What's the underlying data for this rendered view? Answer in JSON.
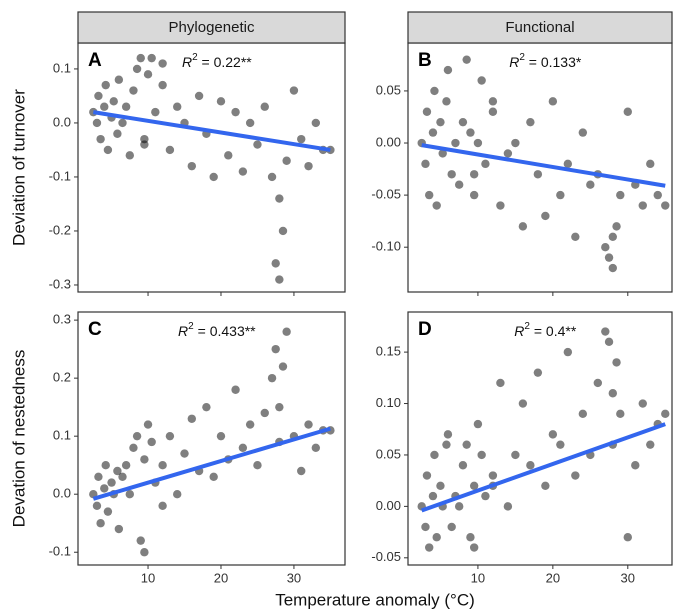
{
  "chart_data": [
    {
      "type": "scatter",
      "strip": "Phylogenetic",
      "letter": "A",
      "ylabel": "Deviation of turnover",
      "r2": {
        "symbol": "R",
        "power": "2",
        "text": " = 0.22**"
      },
      "xlim": [
        0.4,
        37
      ],
      "xticks": [
        10,
        20,
        30
      ],
      "ylim": [
        -0.313,
        0.148
      ],
      "yticks": [
        0.1,
        {
          "value": 0,
          "label": "0.0"
        },
        -0.1,
        -0.2,
        -0.3
      ],
      "point_color": "#000000",
      "fit_color": "#3366ee",
      "x": [
        2.5,
        3,
        3.2,
        3.5,
        4,
        4.2,
        4.5,
        5,
        5.3,
        5.8,
        6,
        6.5,
        7,
        7.5,
        8,
        8.5,
        9,
        9.5,
        10,
        11,
        12,
        13,
        14,
        15,
        16,
        17,
        18,
        19,
        20,
        21,
        22,
        23,
        24,
        25,
        26,
        27,
        28,
        28.5,
        29,
        30,
        31,
        32,
        33,
        34,
        35,
        9.5,
        10.5,
        12,
        27.5,
        28
      ],
      "y": [
        0.02,
        0.0,
        0.05,
        -0.03,
        0.03,
        0.07,
        -0.05,
        0.01,
        0.04,
        -0.02,
        0.08,
        0.0,
        0.03,
        -0.06,
        0.06,
        0.1,
        0.12,
        -0.04,
        0.09,
        0.02,
        0.11,
        -0.05,
        0.03,
        0.0,
        -0.08,
        0.05,
        -0.02,
        -0.1,
        0.04,
        -0.06,
        0.02,
        -0.09,
        0.0,
        -0.04,
        0.03,
        -0.1,
        -0.14,
        -0.2,
        -0.07,
        0.06,
        -0.03,
        -0.08,
        0.0,
        -0.05,
        -0.05,
        -0.03,
        0.12,
        0.07,
        -0.26,
        -0.29
      ],
      "fit": {
        "x": [
          2.5,
          35
        ],
        "y": [
          0.02,
          -0.05
        ]
      }
    },
    {
      "type": "scatter",
      "strip": "Functional",
      "letter": "B",
      "r2": {
        "symbol": "R",
        "power": "2",
        "text": " = 0.133*"
      },
      "xlim": [
        0.67,
        35.9
      ],
      "xticks": [
        10,
        20,
        30
      ],
      "ylim": [
        -0.143,
        0.096
      ],
      "yticks": [
        0.05,
        {
          "value": 0,
          "label": "0.00"
        },
        -0.05,
        {
          "value": -0.1,
          "label": "-0.10"
        }
      ],
      "point_color": "#000000",
      "fit_color": "#3366ee",
      "x": [
        2.5,
        3,
        3.2,
        3.5,
        4,
        4.2,
        4.5,
        5,
        5.3,
        5.8,
        6,
        6.5,
        7,
        7.5,
        8,
        8.5,
        9,
        9.5,
        10,
        11,
        12,
        13,
        14,
        15,
        16,
        17,
        18,
        19,
        20,
        21,
        22,
        23,
        24,
        25,
        26,
        27,
        28,
        28.5,
        29,
        30,
        31,
        32,
        33,
        34,
        35,
        9.5,
        10.5,
        12,
        27.5,
        28
      ],
      "y": [
        0.0,
        -0.02,
        0.03,
        -0.05,
        0.01,
        0.05,
        -0.06,
        0.02,
        -0.01,
        0.04,
        0.07,
        -0.03,
        0.0,
        -0.04,
        0.02,
        0.08,
        0.01,
        -0.05,
        0.0,
        -0.02,
        0.03,
        -0.06,
        -0.01,
        0.0,
        -0.08,
        0.02,
        -0.03,
        -0.07,
        0.04,
        -0.05,
        -0.02,
        -0.09,
        0.01,
        -0.04,
        -0.03,
        -0.1,
        -0.12,
        -0.08,
        -0.05,
        0.03,
        -0.04,
        -0.06,
        -0.02,
        -0.05,
        -0.06,
        -0.03,
        0.06,
        0.04,
        -0.11,
        -0.09
      ],
      "fit": {
        "x": [
          2.5,
          35
        ],
        "y": [
          -0.002,
          -0.041
        ]
      }
    },
    {
      "type": "scatter",
      "letter": "C",
      "ylabel": "Devation of nestedness",
      "r2": {
        "symbol": "R",
        "power": "2",
        "text": " = 0.433**"
      },
      "xlim": [
        0.4,
        37
      ],
      "xticks": [
        10,
        20,
        30
      ],
      "ylim": [
        -0.122,
        0.314
      ],
      "yticks": [
        0.3,
        0.2,
        0.1,
        {
          "value": 0,
          "label": "0.0"
        },
        -0.1
      ],
      "point_color": "#000000",
      "fit_color": "#3366ee",
      "x": [
        2.5,
        3,
        3.2,
        3.5,
        4,
        4.2,
        4.5,
        5,
        5.3,
        5.8,
        6,
        6.5,
        7,
        7.5,
        8,
        8.5,
        9,
        9.5,
        10,
        11,
        12,
        13,
        14,
        15,
        16,
        17,
        18,
        19,
        20,
        21,
        22,
        23,
        24,
        25,
        26,
        27,
        28,
        28.5,
        29,
        30,
        31,
        32,
        33,
        34,
        35,
        9.5,
        10.5,
        12,
        27.5,
        28
      ],
      "y": [
        0.0,
        -0.02,
        0.03,
        -0.05,
        0.01,
        0.05,
        -0.03,
        0.02,
        0.0,
        0.04,
        -0.06,
        0.03,
        0.05,
        0.0,
        0.08,
        0.1,
        -0.08,
        0.06,
        0.12,
        0.02,
        0.05,
        0.1,
        0.0,
        0.07,
        0.13,
        0.04,
        0.15,
        0.03,
        0.1,
        0.06,
        0.18,
        0.08,
        0.12,
        0.05,
        0.14,
        0.2,
        0.09,
        0.22,
        0.28,
        0.1,
        0.04,
        0.12,
        0.08,
        0.11,
        0.11,
        -0.1,
        0.09,
        -0.02,
        0.25,
        0.15
      ],
      "fit": {
        "x": [
          2.5,
          35
        ],
        "y": [
          -0.008,
          0.113
        ]
      }
    },
    {
      "type": "scatter",
      "letter": "D",
      "r2": {
        "symbol": "R",
        "power": "2",
        "text": " = 0.4**"
      },
      "xlim": [
        0.67,
        35.9
      ],
      "xticks": [
        10,
        20,
        30
      ],
      "ylim": [
        -0.057,
        0.189
      ],
      "yticks": [
        0.15,
        {
          "value": 0.1,
          "label": "0.10"
        },
        0.05,
        {
          "value": 0,
          "label": "0.00"
        },
        -0.05
      ],
      "point_color": "#000000",
      "fit_color": "#3366ee",
      "x": [
        2.5,
        3,
        3.2,
        3.5,
        4,
        4.2,
        4.5,
        5,
        5.3,
        5.8,
        6,
        6.5,
        7,
        7.5,
        8,
        8.5,
        9,
        9.5,
        10,
        11,
        12,
        13,
        14,
        15,
        16,
        17,
        18,
        19,
        20,
        21,
        22,
        23,
        24,
        25,
        26,
        27,
        28,
        28.5,
        29,
        30,
        31,
        32,
        33,
        34,
        35,
        9.5,
        10.5,
        12,
        27.5,
        28
      ],
      "y": [
        0.0,
        -0.02,
        0.03,
        -0.04,
        0.01,
        0.05,
        -0.03,
        0.02,
        0.0,
        0.06,
        0.07,
        -0.02,
        0.01,
        0.0,
        0.04,
        0.06,
        -0.03,
        0.02,
        0.08,
        0.01,
        0.03,
        0.12,
        0.0,
        0.05,
        0.1,
        0.04,
        0.13,
        0.02,
        0.07,
        0.06,
        0.15,
        0.03,
        0.09,
        0.05,
        0.12,
        0.17,
        0.06,
        0.14,
        0.09,
        -0.03,
        0.04,
        0.1,
        0.06,
        0.08,
        0.09,
        -0.04,
        0.05,
        0.02,
        0.16,
        0.11
      ],
      "fit": {
        "x": [
          2.5,
          35
        ],
        "y": [
          -0.004,
          0.08
        ]
      }
    }
  ],
  "shared_xlabel": "Temperature anomaly (°C)"
}
